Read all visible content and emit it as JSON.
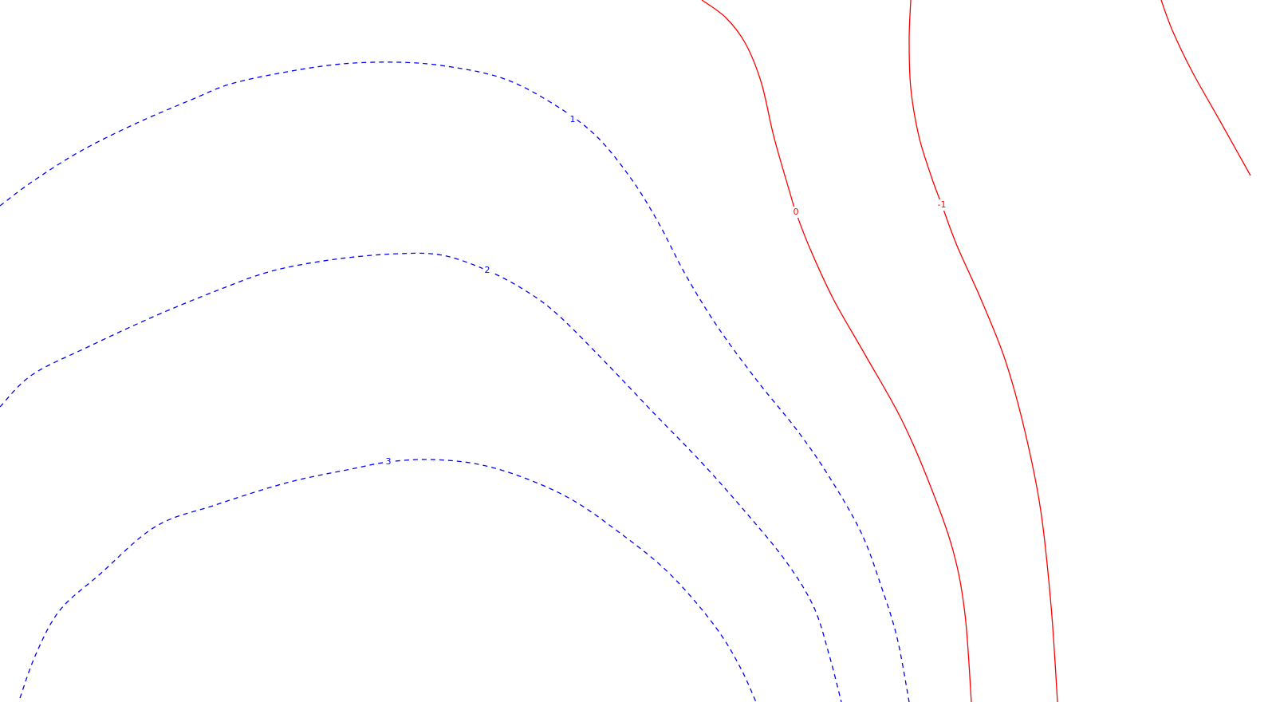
{
  "chart_data": {
    "type": "contour",
    "title": "",
    "xlabel": "",
    "ylabel": "",
    "grid": false,
    "legend": "none",
    "styles": {
      "positive": {
        "color": "#0000ff",
        "dash": "dashed"
      },
      "nonpositive": {
        "color": "#ff0000",
        "dash": "solid"
      }
    },
    "contours": [
      {
        "level": "1",
        "value": 1,
        "label": "1",
        "color": "#0000ff",
        "dashed": true,
        "label_at": [
          718,
          150
        ],
        "points": [
          [
            0,
            258
          ],
          [
            40,
            228
          ],
          [
            100,
            190
          ],
          [
            170,
            155
          ],
          [
            240,
            125
          ],
          [
            290,
            105
          ],
          [
            360,
            90
          ],
          [
            430,
            80
          ],
          [
            500,
            78
          ],
          [
            560,
            83
          ],
          [
            630,
            98
          ],
          [
            690,
            128
          ],
          [
            745,
            168
          ],
          [
            790,
            222
          ],
          [
            825,
            278
          ],
          [
            860,
            345
          ],
          [
            900,
            410
          ],
          [
            950,
            478
          ],
          [
            1000,
            540
          ],
          [
            1040,
            598
          ],
          [
            1080,
            668
          ],
          [
            1105,
            735
          ],
          [
            1125,
            800
          ],
          [
            1140,
            880
          ]
        ]
      },
      {
        "level": "2",
        "value": 2,
        "label": "2",
        "color": "#0000ff",
        "dashed": true,
        "label_at": [
          611,
          339
        ],
        "points": [
          [
            0,
            510
          ],
          [
            40,
            470
          ],
          [
            110,
            435
          ],
          [
            190,
            398
          ],
          [
            270,
            365
          ],
          [
            340,
            340
          ],
          [
            420,
            325
          ],
          [
            500,
            318
          ],
          [
            555,
            320
          ],
          [
            611,
            339
          ],
          [
            660,
            365
          ],
          [
            700,
            395
          ],
          [
            760,
            455
          ],
          [
            820,
            518
          ],
          [
            880,
            580
          ],
          [
            935,
            642
          ],
          [
            985,
            703
          ],
          [
            1020,
            760
          ],
          [
            1040,
            822
          ],
          [
            1055,
            880
          ]
        ]
      },
      {
        "level": "3",
        "value": 3,
        "label": "3",
        "color": "#0000ff",
        "dashed": true,
        "label_at": [
          487,
          579
        ],
        "points": [
          [
            25,
            875
          ],
          [
            45,
            820
          ],
          [
            75,
            765
          ],
          [
            125,
            720
          ],
          [
            195,
            660
          ],
          [
            270,
            633
          ],
          [
            360,
            605
          ],
          [
            440,
            588
          ],
          [
            487,
            579
          ],
          [
            540,
            576
          ],
          [
            600,
            582
          ],
          [
            660,
            600
          ],
          [
            720,
            628
          ],
          [
            780,
            670
          ],
          [
            830,
            710
          ],
          [
            870,
            752
          ],
          [
            905,
            797
          ],
          [
            930,
            840
          ],
          [
            948,
            880
          ]
        ]
      },
      {
        "level": "0",
        "value": 0,
        "label": "0",
        "color": "#ff0000",
        "dashed": false,
        "label_at": [
          998,
          266
        ],
        "points": [
          [
            880,
            0
          ],
          [
            910,
            22
          ],
          [
            935,
            55
          ],
          [
            955,
            105
          ],
          [
            970,
            170
          ],
          [
            990,
            240
          ],
          [
            998,
            266
          ],
          [
            1015,
            310
          ],
          [
            1045,
            375
          ],
          [
            1085,
            445
          ],
          [
            1130,
            525
          ],
          [
            1165,
            605
          ],
          [
            1195,
            690
          ],
          [
            1210,
            770
          ],
          [
            1218,
            880
          ]
        ]
      },
      {
        "level": "-1",
        "value": -1,
        "label": "-1",
        "color": "#ff0000",
        "dashed": false,
        "label_at": [
          1181,
          257
        ],
        "points": [
          [
            1142,
            0
          ],
          [
            1140,
            50
          ],
          [
            1142,
            110
          ],
          [
            1152,
            170
          ],
          [
            1168,
            222
          ],
          [
            1181,
            257
          ],
          [
            1200,
            308
          ],
          [
            1230,
            375
          ],
          [
            1260,
            450
          ],
          [
            1285,
            540
          ],
          [
            1305,
            640
          ],
          [
            1318,
            760
          ],
          [
            1326,
            880
          ]
        ]
      },
      {
        "level": "",
        "value": null,
        "label": "",
        "color": "#ff0000",
        "dashed": false,
        "label_at": null,
        "points": [
          [
            1456,
            0
          ],
          [
            1470,
            38
          ],
          [
            1495,
            90
          ],
          [
            1530,
            152
          ],
          [
            1568,
            220
          ]
        ]
      }
    ]
  }
}
